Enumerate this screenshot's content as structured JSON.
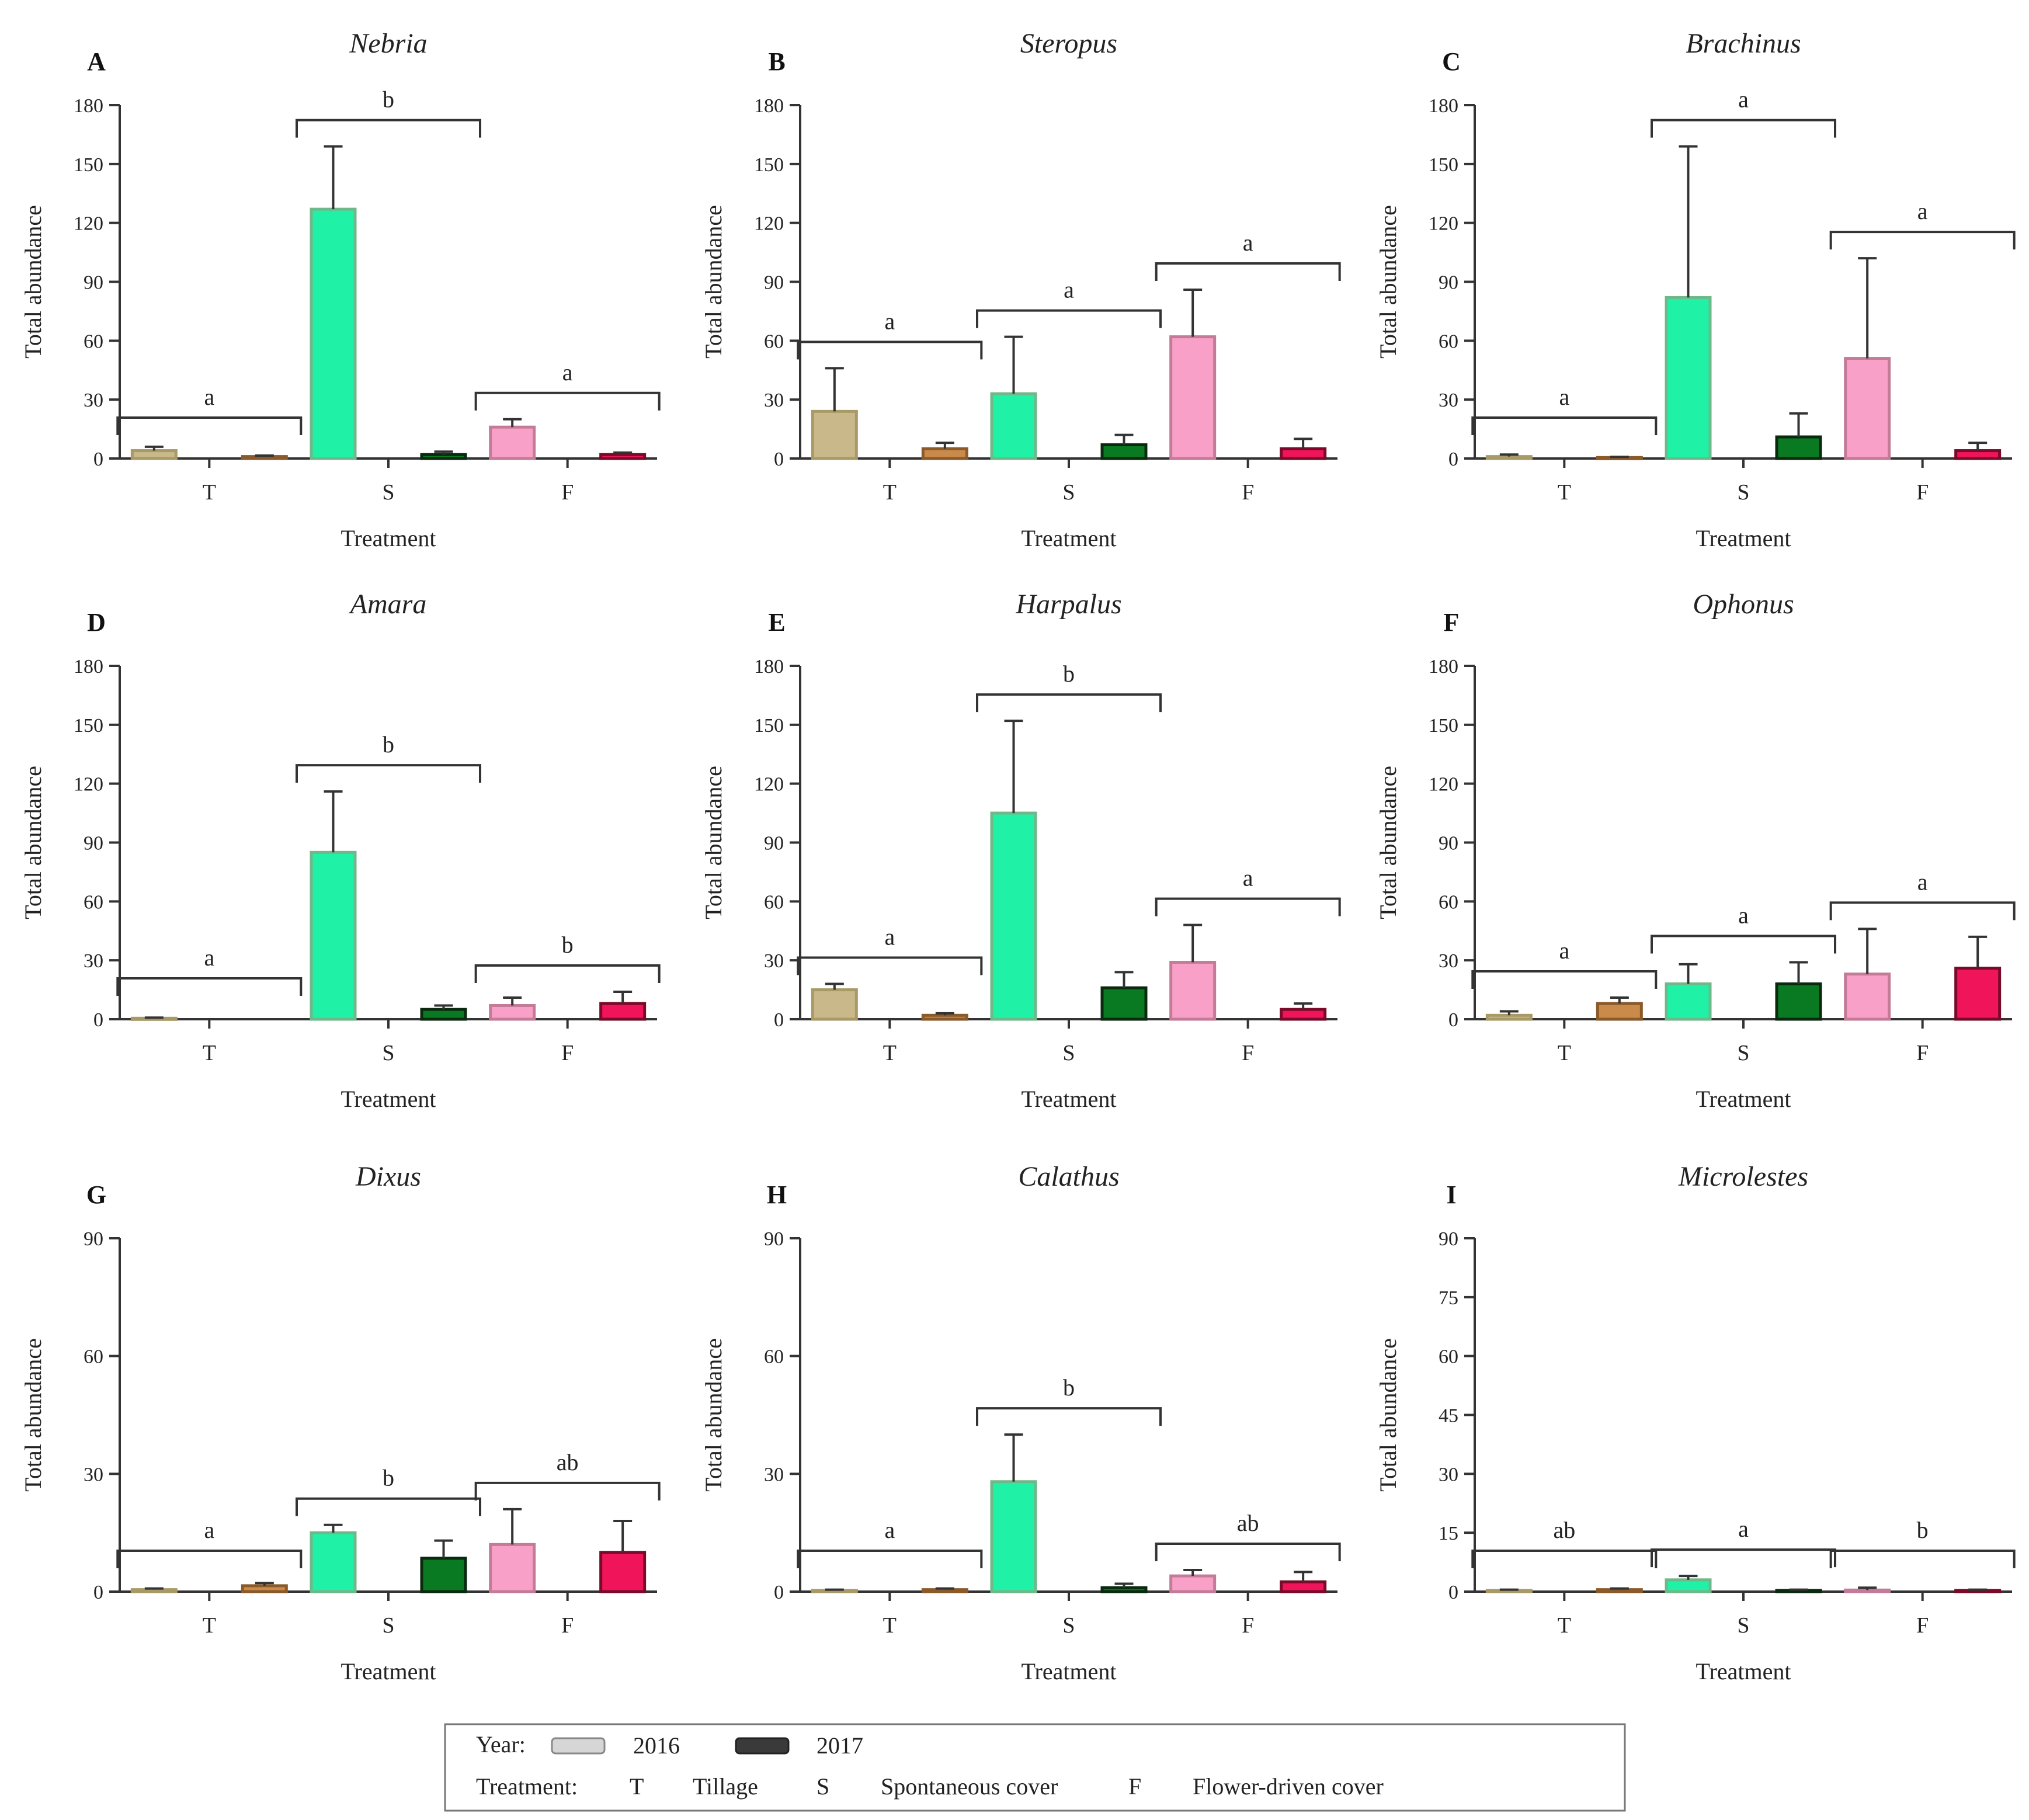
{
  "legend": {
    "year_label": "Year:",
    "year_2016": "2016",
    "year_2017": "2017",
    "treatment_label": "Treatment:",
    "T_code": "T",
    "T_name": "Tillage",
    "S_code": "S",
    "S_name": "Spontaneous cover",
    "F_code": "F",
    "F_name": "Flower-driven cover"
  },
  "colors": {
    "T_2016": "#c9b98a",
    "T_2017": "#c98a4a",
    "S_2016": "#1ff2a6",
    "S_2017": "#0a7a22",
    "F_2016": "#f9a0c8",
    "F_2017": "#f0145a",
    "T_2016_border": "#a89a66",
    "T_2017_border": "#8a5a2a",
    "S_2016_border": "#6fb88a",
    "S_2017_border": "#0a2a10",
    "F_2016_border": "#c47b97",
    "F_2017_border": "#7a0a2a",
    "axis": "#333333"
  },
  "chart_data": [
    {
      "panel": "A",
      "title": "Nebria",
      "type": "bar",
      "xlabel": "Treatment",
      "ylabel": "Total abundance",
      "categories": [
        "T",
        "S",
        "F"
      ],
      "ylim": [
        0,
        180
      ],
      "yticks": [
        "0",
        "30",
        "60",
        "90",
        "120",
        "150",
        "180"
      ],
      "series": [
        {
          "name": "2016",
          "values": [
            4,
            127,
            16
          ],
          "errors": [
            2,
            32,
            4
          ]
        },
        {
          "name": "2017",
          "values": [
            1,
            2,
            2
          ],
          "errors": [
            0.5,
            1.5,
            1
          ]
        }
      ],
      "letters": [
        "a",
        "b",
        "a"
      ]
    },
    {
      "panel": "B",
      "title": "Steropus",
      "type": "bar",
      "xlabel": "Treatment",
      "ylabel": "Total abundance",
      "categories": [
        "T",
        "S",
        "F"
      ],
      "ylim": [
        0,
        180
      ],
      "yticks": [
        "0",
        "30",
        "60",
        "90",
        "120",
        "150",
        "180"
      ],
      "series": [
        {
          "name": "2016",
          "values": [
            24,
            33,
            62
          ],
          "errors": [
            22,
            29,
            24
          ]
        },
        {
          "name": "2017",
          "values": [
            5,
            7,
            5
          ],
          "errors": [
            3,
            5,
            5
          ]
        }
      ],
      "letters": [
        "a",
        "a",
        "a"
      ]
    },
    {
      "panel": "C",
      "title": "Brachinus",
      "type": "bar",
      "xlabel": "Treatment",
      "ylabel": "Total abundance",
      "categories": [
        "T",
        "S",
        "F"
      ],
      "ylim": [
        0,
        180
      ],
      "yticks": [
        "0",
        "30",
        "60",
        "90",
        "120",
        "150",
        "180"
      ],
      "series": [
        {
          "name": "2016",
          "values": [
            1,
            82,
            51
          ],
          "errors": [
            1,
            77,
            51
          ]
        },
        {
          "name": "2017",
          "values": [
            0.5,
            11,
            4
          ],
          "errors": [
            0.3,
            12,
            4
          ]
        }
      ],
      "letters": [
        "a",
        "a",
        "a"
      ]
    },
    {
      "panel": "D",
      "title": "Amara",
      "type": "bar",
      "xlabel": "Treatment",
      "ylabel": "Total abundance",
      "categories": [
        "T",
        "S",
        "F"
      ],
      "ylim": [
        0,
        180
      ],
      "yticks": [
        "0",
        "30",
        "60",
        "90",
        "120",
        "150",
        "180"
      ],
      "series": [
        {
          "name": "2016",
          "values": [
            0.5,
            85,
            7
          ],
          "errors": [
            0.3,
            31,
            4
          ]
        },
        {
          "name": "2017",
          "values": [
            0,
            5,
            8
          ],
          "errors": [
            0,
            2,
            6
          ]
        }
      ],
      "letters": [
        "a",
        "b",
        "b"
      ]
    },
    {
      "panel": "E",
      "title": "Harpalus",
      "type": "bar",
      "xlabel": "Treatment",
      "ylabel": "Total abundance",
      "categories": [
        "T",
        "S",
        "F"
      ],
      "ylim": [
        0,
        180
      ],
      "yticks": [
        "0",
        "30",
        "60",
        "90",
        "120",
        "150",
        "180"
      ],
      "series": [
        {
          "name": "2016",
          "values": [
            15,
            105,
            29
          ],
          "errors": [
            3,
            47,
            19
          ]
        },
        {
          "name": "2017",
          "values": [
            2,
            16,
            5
          ],
          "errors": [
            1,
            8,
            3
          ]
        }
      ],
      "letters": [
        "a",
        "b",
        "a"
      ]
    },
    {
      "panel": "F",
      "title": "Ophonus",
      "type": "bar",
      "xlabel": "Treatment",
      "ylabel": "Total abundance",
      "categories": [
        "T",
        "S",
        "F"
      ],
      "ylim": [
        0,
        180
      ],
      "yticks": [
        "0",
        "30",
        "60",
        "90",
        "120",
        "150",
        "180"
      ],
      "series": [
        {
          "name": "2016",
          "values": [
            2,
            18,
            23
          ],
          "errors": [
            2,
            10,
            23
          ]
        },
        {
          "name": "2017",
          "values": [
            8,
            18,
            26
          ],
          "errors": [
            3,
            11,
            16
          ]
        }
      ],
      "letters": [
        "a",
        "a",
        "a"
      ]
    },
    {
      "panel": "G",
      "title": "Dixus",
      "type": "bar",
      "xlabel": "Treatment",
      "ylabel": "Total abundance",
      "categories": [
        "T",
        "S",
        "F"
      ],
      "ylim": [
        0,
        90
      ],
      "yticks": [
        "0",
        "30",
        "60",
        "90"
      ],
      "series": [
        {
          "name": "2016",
          "values": [
            0.5,
            15,
            12
          ],
          "errors": [
            0.3,
            2,
            9
          ]
        },
        {
          "name": "2017",
          "values": [
            1.5,
            8.5,
            10
          ],
          "errors": [
            0.7,
            4.5,
            8
          ]
        }
      ],
      "letters": [
        "a",
        "b",
        "ab"
      ]
    },
    {
      "panel": "H",
      "title": "Calathus",
      "type": "bar",
      "xlabel": "Treatment",
      "ylabel": "Total abundance",
      "categories": [
        "T",
        "S",
        "F"
      ],
      "ylim": [
        0,
        90
      ],
      "yticks": [
        "0",
        "30",
        "60",
        "90"
      ],
      "series": [
        {
          "name": "2016",
          "values": [
            0.3,
            28,
            4
          ],
          "errors": [
            0.2,
            12,
            1.5
          ]
        },
        {
          "name": "2017",
          "values": [
            0.5,
            1,
            2.5
          ],
          "errors": [
            0.3,
            1,
            2.5
          ]
        }
      ],
      "letters": [
        "a",
        "b",
        "ab"
      ]
    },
    {
      "panel": "I",
      "title": "Microlestes",
      "type": "bar",
      "xlabel": "Treatment",
      "ylabel": "Total abundance",
      "categories": [
        "T",
        "S",
        "F"
      ],
      "ylim": [
        0,
        90
      ],
      "yticks": [
        "0",
        "15",
        "30",
        "45",
        "60",
        "75",
        "90"
      ],
      "series": [
        {
          "name": "2016",
          "values": [
            0.3,
            3,
            0.4
          ],
          "errors": [
            0.2,
            1,
            0.6
          ]
        },
        {
          "name": "2017",
          "values": [
            0.5,
            0.3,
            0.3
          ],
          "errors": [
            0.3,
            0.2,
            0.2
          ]
        }
      ],
      "letters": [
        "ab",
        "a",
        "b"
      ]
    }
  ]
}
